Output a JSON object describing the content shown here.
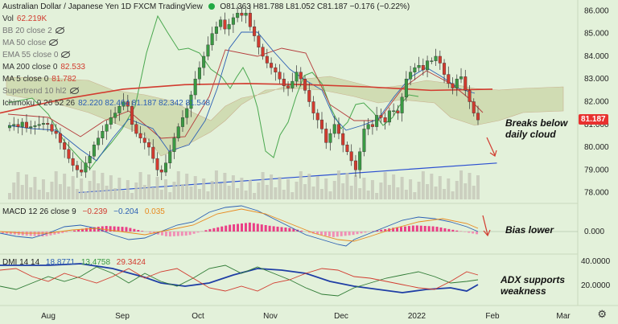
{
  "header": {
    "title": "Australian Dollar / Japanese Yen  1D  FXCM  TradingView",
    "ohlc": "O81.363  H81.788  L81.052  C81.187  −0.176 (−0.22%)"
  },
  "indicators_list": [
    {
      "label": "Vol",
      "value": "62.219K",
      "value_color": "#d23b2f",
      "hidden": false
    },
    {
      "label": "BB 20 close 2",
      "value": "",
      "value_color": "#333",
      "hidden": true
    },
    {
      "label": "MA 50 close",
      "value": "",
      "value_color": "#333",
      "hidden": true
    },
    {
      "label": "EMA 55 close 0",
      "value": "",
      "value_color": "#333",
      "hidden": true
    },
    {
      "label": "MA 200 close 0",
      "value": "82.533",
      "value_color": "#d23b2f",
      "hidden": false
    },
    {
      "label": "MA 5 close 0",
      "value": "81.782",
      "value_color": "#d23b2f",
      "hidden": false
    },
    {
      "label": "Supertrend 10 hl2",
      "value": "",
      "value_color": "#333",
      "hidden": true
    },
    {
      "label": "Ichimoku 9 26 52 26",
      "value": "82.220  82.464  81.187  82.342  81.548",
      "value_color": "#2b5fb4",
      "hidden": false
    }
  ],
  "price_axis": [
    "86.000",
    "85.000",
    "84.000",
    "83.000",
    "82.000",
    "81.000",
    "80.000",
    "79.000",
    "78.000"
  ],
  "last_price": "81.187",
  "macd": {
    "label": "MACD 12 26 close 9",
    "values": [
      "−0.239",
      "−0.204",
      "0.035"
    ],
    "axis": [
      "0.000"
    ]
  },
  "dmi": {
    "label": "DMI 14 14",
    "values": [
      "18.8771",
      "13.4758",
      "29.3424"
    ],
    "axis": [
      "40.0000",
      "20.0000"
    ]
  },
  "time_axis": [
    "Aug",
    "Sep",
    "Oct",
    "Nov",
    "Dec",
    "2022",
    "Feb",
    "Mar"
  ],
  "annotations": {
    "cloud": "Breaks below daily cloud",
    "macd": "Bias lower",
    "adx": "ADX supports weakness"
  },
  "colors": {
    "background": "#e3f1da",
    "bull": "#3a9a43",
    "bear": "#d23b2f",
    "ma200": "#d23b2f",
    "trendline": "#2b4fd1",
    "cloud": "#c8d7a8"
  },
  "chart_data": {
    "type": "candlestick",
    "title": "Australian Dollar / Japanese Yen 1D FXCM",
    "ylim": [
      77.7,
      86.3
    ],
    "x_labels": [
      "Aug",
      "Sep",
      "Oct",
      "Nov",
      "Dec",
      "2022",
      "Feb",
      "Mar"
    ],
    "close": [
      80.95,
      81.0,
      80.9,
      81.1,
      80.85,
      80.9,
      80.95,
      81.0,
      81.05,
      81.0,
      80.7,
      80.6,
      80.2,
      79.9,
      79.5,
      79.2,
      79.0,
      78.9,
      79.3,
      79.6,
      80.1,
      80.4,
      80.7,
      81.0,
      81.3,
      81.5,
      81.8,
      82.0,
      81.8,
      81.0,
      80.6,
      80.4,
      80.2,
      80.0,
      79.5,
      79.0,
      78.9,
      79.3,
      79.8,
      80.4,
      80.9,
      81.3,
      81.7,
      82.3,
      83.0,
      83.5,
      84.0,
      84.5,
      85.0,
      85.3,
      85.6,
      85.2,
      85.4,
      85.7,
      85.9,
      85.8,
      85.9,
      85.3,
      84.9,
      84.4,
      84.0,
      83.7,
      83.5,
      83.3,
      83.0,
      82.7,
      82.6,
      82.9,
      83.3,
      83.0,
      82.5,
      82.0,
      81.5,
      81.2,
      80.8,
      80.2,
      80.6,
      81.0,
      80.6,
      80.1,
      79.8,
      79.4,
      79.0,
      79.8,
      80.8,
      81.0,
      80.9,
      81.4,
      81.3,
      81.1,
      81.6,
      81.6,
      81.5,
      82.2,
      83.0,
      83.3,
      83.5,
      83.6,
      83.4,
      83.8,
      83.8,
      84.0,
      83.7,
      83.2,
      82.8,
      82.6,
      83.0,
      83.1,
      82.5,
      82.0,
      81.5,
      81.2
    ],
    "ma200": [
      81.5,
      82.1,
      82.55,
      82.75,
      82.8,
      82.75,
      82.65,
      82.5,
      82.55
    ],
    "trendline_from": [
      0.15,
      78.0
    ],
    "trendline_to": [
      0.86,
      79.3
    ],
    "series": [
      {
        "name": "MACD",
        "values": [
          -0.15,
          -0.35,
          -0.45,
          -0.1,
          0.3,
          0.5,
          0.4,
          -0.05,
          -0.45,
          -0.35,
          0.2,
          0.6,
          0.8,
          0.5,
          0.3,
          -0.15,
          -0.5,
          -0.3,
          0.05,
          0.35,
          0.55,
          0.45,
          0.1,
          -0.239
        ]
      },
      {
        "name": "DMI +",
        "values": [
          10,
          22,
          28,
          16,
          20,
          32,
          38,
          34,
          28,
          18,
          12,
          10,
          14,
          22,
          28,
          30,
          26,
          22,
          20,
          18
        ]
      },
      {
        "name": "DMI −",
        "values": [
          30,
          22,
          12,
          18,
          22,
          20,
          14,
          20,
          26,
          30,
          24,
          20,
          16,
          14,
          16,
          20,
          22,
          18,
          16,
          13.5
        ]
      },
      {
        "name": "ADX",
        "values": [
          30,
          36,
          40,
          38,
          34,
          28,
          32,
          38,
          40,
          36,
          30,
          24,
          20,
          18,
          20,
          22,
          20,
          18,
          16,
          18.9
        ]
      }
    ]
  }
}
